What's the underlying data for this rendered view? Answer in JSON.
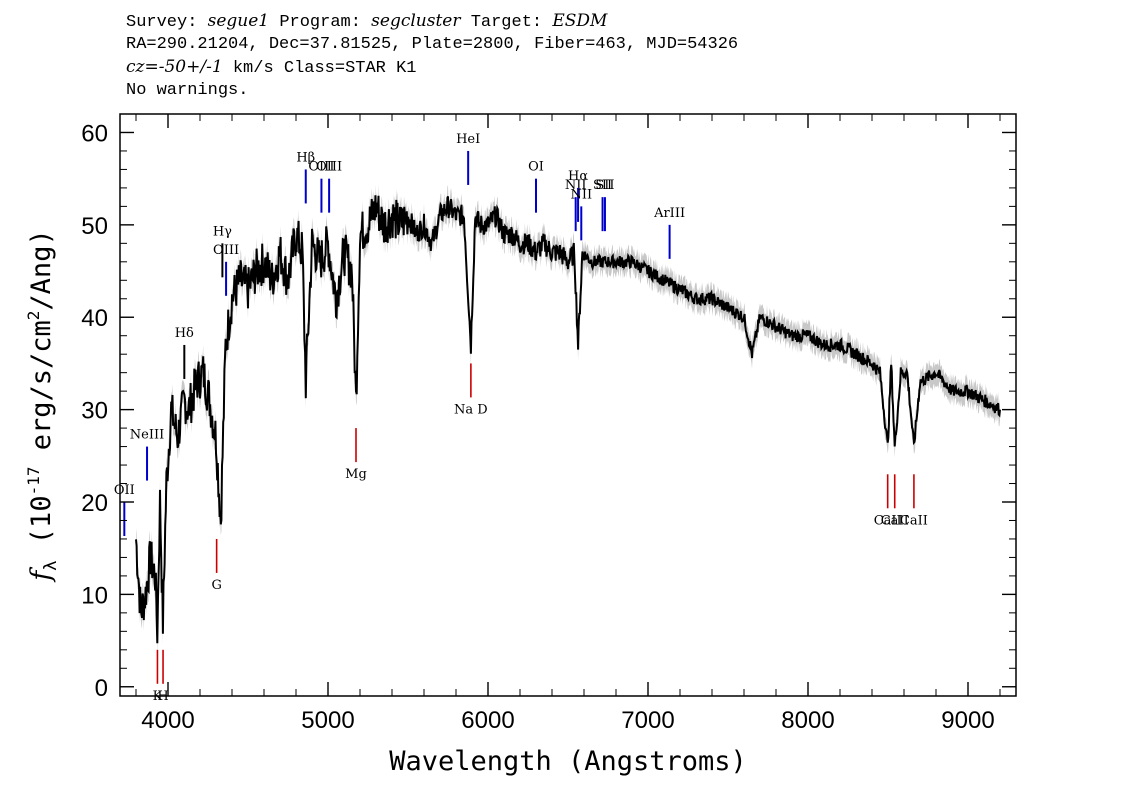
{
  "header": {
    "survey_label": "Survey:",
    "survey": "segue1",
    "program_label": "Program:",
    "program": "segcluster",
    "target_label": "Target:",
    "target": "ESDM",
    "line2": "RA=290.21204, Dec=37.81525, Plate=2800, Fiber=463, MJD=54326",
    "cz_label": "cz=",
    "cz_value": "-50+/-1",
    "cz_rest": " km/s Class=STAR K1",
    "line4": "No warnings."
  },
  "chart_data": {
    "type": "line",
    "xlabel": "Wavelength (Angstroms)",
    "ylabel": "f_λ (10^-17 erg/s/cm^2/Ang)",
    "xlim": [
      3700,
      9300
    ],
    "ylim": [
      -1,
      62
    ],
    "x_ticks": [
      4000,
      5000,
      6000,
      7000,
      8000,
      9000
    ],
    "y_ticks": [
      0,
      10,
      20,
      30,
      40,
      50,
      60
    ],
    "series": [
      {
        "color": "#000000",
        "x": [
          3800,
          3830,
          3860,
          3890,
          3920,
          3933,
          3950,
          3968,
          3990,
          4020,
          4060,
          4102,
          4130,
          4180,
          4220,
          4260,
          4300,
          4330,
          4360,
          4400,
          4450,
          4500,
          4550,
          4600,
          4650,
          4700,
          4750,
          4800,
          4840,
          4861,
          4900,
          4950,
          5000,
          5050,
          5100,
          5150,
          5175,
          5200,
          5250,
          5300,
          5350,
          5400,
          5450,
          5500,
          5550,
          5600,
          5650,
          5700,
          5750,
          5800,
          5850,
          5893,
          5920,
          5950,
          6000,
          6050,
          6100,
          6150,
          6200,
          6250,
          6300,
          6350,
          6400,
          6450,
          6500,
          6540,
          6563,
          6590,
          6650,
          6700,
          6800,
          6900,
          7000,
          7100,
          7200,
          7300,
          7400,
          7500,
          7600,
          7650,
          7700,
          7800,
          7900,
          8000,
          8100,
          8200,
          8300,
          8400,
          8450,
          8498,
          8520,
          8542,
          8580,
          8620,
          8662,
          8700,
          8800,
          8900,
          9000,
          9100,
          9200
        ],
        "y": [
          16,
          8,
          10,
          14,
          12,
          6,
          20,
          7,
          22,
          30,
          27,
          31,
          30,
          33,
          34,
          31,
          27,
          18,
          37,
          42,
          44,
          43,
          45,
          46,
          44,
          47,
          44,
          49,
          47,
          33,
          48,
          46,
          48,
          42,
          47,
          45,
          31,
          49,
          50,
          52,
          50,
          51,
          50,
          51,
          49,
          50,
          48,
          51,
          52,
          51,
          51,
          37,
          51,
          50,
          50,
          51,
          49,
          49,
          48,
          48,
          47,
          48,
          47,
          47,
          46,
          47,
          37,
          47,
          46,
          46,
          46,
          46,
          45,
          44,
          43,
          42,
          42,
          41,
          40,
          36,
          40,
          39,
          38,
          38,
          37,
          37,
          36,
          35,
          34,
          26,
          35,
          26,
          34,
          34,
          26,
          33,
          34,
          32,
          32,
          31,
          30
        ]
      }
    ],
    "emission_lines": [
      {
        "name": "OII",
        "wavelength": 3727,
        "y": 20,
        "color": "#0000cc"
      },
      {
        "name": "NeIII",
        "wavelength": 3869,
        "y": 26,
        "color": "#0000cc"
      },
      {
        "name": "Hδ",
        "wavelength": 4102,
        "y": 37,
        "color": "#000000"
      },
      {
        "name": "Hγ",
        "wavelength": 4340,
        "y": 48,
        "color": "#000000"
      },
      {
        "name": "OIII",
        "wavelength": 4363,
        "y": 46,
        "color": "#0000cc"
      },
      {
        "name": "Hβ",
        "wavelength": 4861,
        "y": 56,
        "color": "#0000cc"
      },
      {
        "name": "OIII",
        "wavelength": 4959,
        "y": 55,
        "color": "#0000cc"
      },
      {
        "name": "OIII",
        "wavelength": 5007,
        "y": 55,
        "color": "#0000cc"
      },
      {
        "name": "HeI",
        "wavelength": 5876,
        "y": 58,
        "color": "#0000cc"
      },
      {
        "name": "OI",
        "wavelength": 6300,
        "y": 55,
        "color": "#0000cc"
      },
      {
        "name": "NII",
        "wavelength": 6548,
        "y": 53,
        "color": "#0000cc"
      },
      {
        "name": "Hα",
        "wavelength": 6563,
        "y": 54,
        "color": "#0000cc"
      },
      {
        "name": "NII",
        "wavelength": 6583,
        "y": 52,
        "color": "#0000cc"
      },
      {
        "name": "SII",
        "wavelength": 6716,
        "y": 53,
        "color": "#0000cc"
      },
      {
        "name": "SII",
        "wavelength": 6731,
        "y": 53,
        "color": "#0000cc"
      },
      {
        "name": "ArIII",
        "wavelength": 7135,
        "y": 50,
        "color": "#0000cc"
      }
    ],
    "absorption_lines": [
      {
        "name": "K",
        "wavelength": 3934,
        "y": 4,
        "color": "#cc0000"
      },
      {
        "name": "H",
        "wavelength": 3969,
        "y": 4,
        "color": "#cc0000"
      },
      {
        "name": "G",
        "wavelength": 4304,
        "y": 16,
        "color": "#cc0000"
      },
      {
        "name": "Mg",
        "wavelength": 5175,
        "y": 28,
        "color": "#cc0000"
      },
      {
        "name": "Na D",
        "wavelength": 5893,
        "y": 35,
        "color": "#cc0000"
      },
      {
        "name": "CaII",
        "wavelength": 8498,
        "y": 23,
        "color": "#cc0000"
      },
      {
        "name": "CaII",
        "wavelength": 8542,
        "y": 23,
        "color": "#cc0000"
      },
      {
        "name": "CaII",
        "wavelength": 8662,
        "y": 23,
        "color": "#cc0000"
      }
    ]
  }
}
